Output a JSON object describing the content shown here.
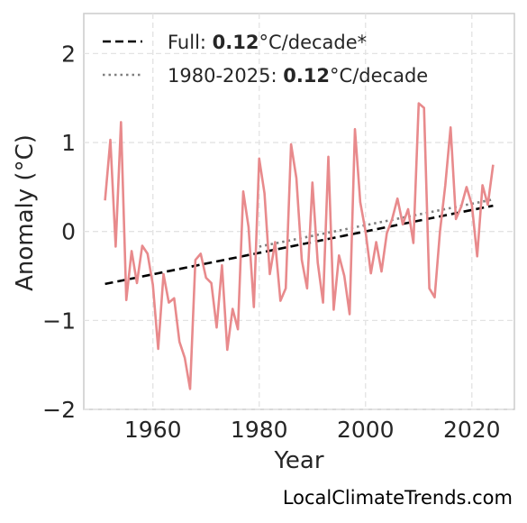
{
  "chart_data": {
    "type": "line",
    "xlabel": "Year",
    "ylabel": "Anomaly (°C)",
    "xlim": [
      1947,
      2028
    ],
    "ylim": [
      -2.0,
      2.45
    ],
    "xticks": [
      1960,
      1980,
      2000,
      2020
    ],
    "yticks": [
      2,
      1,
      0,
      -1,
      -2
    ],
    "ytick_labels": [
      "2",
      "1",
      "0",
      "−1",
      "−2"
    ],
    "grid": true,
    "legend_placement": "top-left",
    "series": [
      {
        "color": "#e88a8c",
        "x": [
          1951,
          1952,
          1953,
          1954,
          1955,
          1956,
          1957,
          1958,
          1959,
          1960,
          1961,
          1962,
          1963,
          1964,
          1965,
          1966,
          1967,
          1968,
          1969,
          1970,
          1971,
          1972,
          1973,
          1974,
          1975,
          1976,
          1977,
          1978,
          1979,
          1980,
          1981,
          1982,
          1983,
          1984,
          1985,
          1986,
          1987,
          1988,
          1989,
          1990,
          1991,
          1992,
          1993,
          1994,
          1995,
          1996,
          1997,
          1998,
          1999,
          2000,
          2001,
          2002,
          2003,
          2004,
          2005,
          2006,
          2007,
          2008,
          2009,
          2010,
          2011,
          2012,
          2013,
          2014,
          2015,
          2016,
          2017,
          2018,
          2019,
          2020,
          2021,
          2022,
          2023,
          2024
        ],
        "y": [
          0.35,
          1.03,
          -0.17,
          1.23,
          -0.77,
          -0.22,
          -0.58,
          -0.16,
          -0.25,
          -0.6,
          -1.32,
          -0.48,
          -0.8,
          -0.75,
          -1.24,
          -1.42,
          -1.77,
          -0.32,
          -0.25,
          -0.52,
          -0.58,
          -1.08,
          -0.38,
          -1.33,
          -0.87,
          -1.1,
          0.45,
          0.05,
          -0.85,
          0.82,
          0.43,
          -0.48,
          -0.12,
          -0.78,
          -0.64,
          0.98,
          0.6,
          -0.32,
          -0.64,
          0.55,
          -0.35,
          -0.8,
          0.84,
          -0.88,
          -0.27,
          -0.5,
          -0.93,
          1.15,
          0.33,
          0.0,
          -0.47,
          -0.12,
          -0.45,
          -0.02,
          0.14,
          0.37,
          0.08,
          0.25,
          -0.13,
          1.44,
          1.39,
          -0.64,
          -0.74,
          0.0,
          0.52,
          1.17,
          0.14,
          0.28,
          0.5,
          0.3,
          -0.28,
          0.52,
          0.3,
          0.75
        ]
      }
    ],
    "trends": [
      {
        "style": "dashed",
        "color": "#000000",
        "x": [
          1951,
          2024
        ],
        "y": [
          -0.59,
          0.29
        ],
        "label_prefix": "Full: ",
        "label_value": "0.12",
        "label_suffix": "°C/decade*"
      },
      {
        "style": "dotted",
        "color": "#808080",
        "x": [
          1980,
          2024
        ],
        "y": [
          -0.17,
          0.36
        ],
        "label_prefix": "1980-2025: ",
        "label_value": "0.12",
        "label_suffix": "°C/decade"
      }
    ]
  },
  "credit": "LocalClimateTrends.com"
}
